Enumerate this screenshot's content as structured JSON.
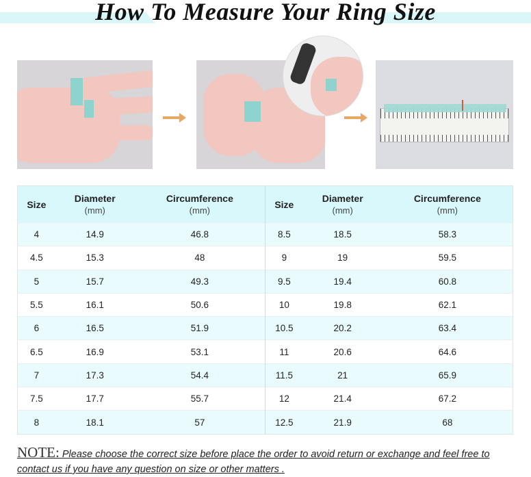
{
  "title": "How To Measure Your Ring Size",
  "colors": {
    "accent": "#d8f8fc",
    "tape": "#8fd3cf",
    "arrow": "#e8a865"
  },
  "steps": [
    {
      "icon": "hand-with-tape-photo"
    },
    {
      "icon": "marking-tape-photo"
    },
    {
      "icon": "ruler-measurement-photo"
    }
  ],
  "table": {
    "headers": [
      {
        "label": "Size",
        "unit": ""
      },
      {
        "label": "Diameter",
        "unit": "(mm)"
      },
      {
        "label": "Circumference",
        "unit": "(mm)"
      },
      {
        "label": "Size",
        "unit": ""
      },
      {
        "label": "Diameter",
        "unit": "(mm)"
      },
      {
        "label": "Circumference",
        "unit": "(mm)"
      }
    ],
    "rows": [
      [
        "4",
        "14.9",
        "46.8",
        "8.5",
        "18.5",
        "58.3"
      ],
      [
        "4.5",
        "15.3",
        "48",
        "9",
        "19",
        "59.5"
      ],
      [
        "5",
        "15.7",
        "49.3",
        "9.5",
        "19.4",
        "60.8"
      ],
      [
        "5.5",
        "16.1",
        "50.6",
        "10",
        "19.8",
        "62.1"
      ],
      [
        "6",
        "16.5",
        "51.9",
        "10.5",
        "20.2",
        "63.4"
      ],
      [
        "6.5",
        "16.9",
        "53.1",
        "11",
        "20.6",
        "64.6"
      ],
      [
        "7",
        "17.3",
        "54.4",
        "11.5",
        "21",
        "65.9"
      ],
      [
        "7.5",
        "17.7",
        "55.7",
        "12",
        "21.4",
        "67.2"
      ],
      [
        "8",
        "18.1",
        "57",
        "12.5",
        "21.9",
        "68"
      ]
    ]
  },
  "note": {
    "label": "NOTE:",
    "text": " Please choose the correct size before place the order to avoid return or exchange and feel free to contact us if you have any question on size or other matters ."
  }
}
